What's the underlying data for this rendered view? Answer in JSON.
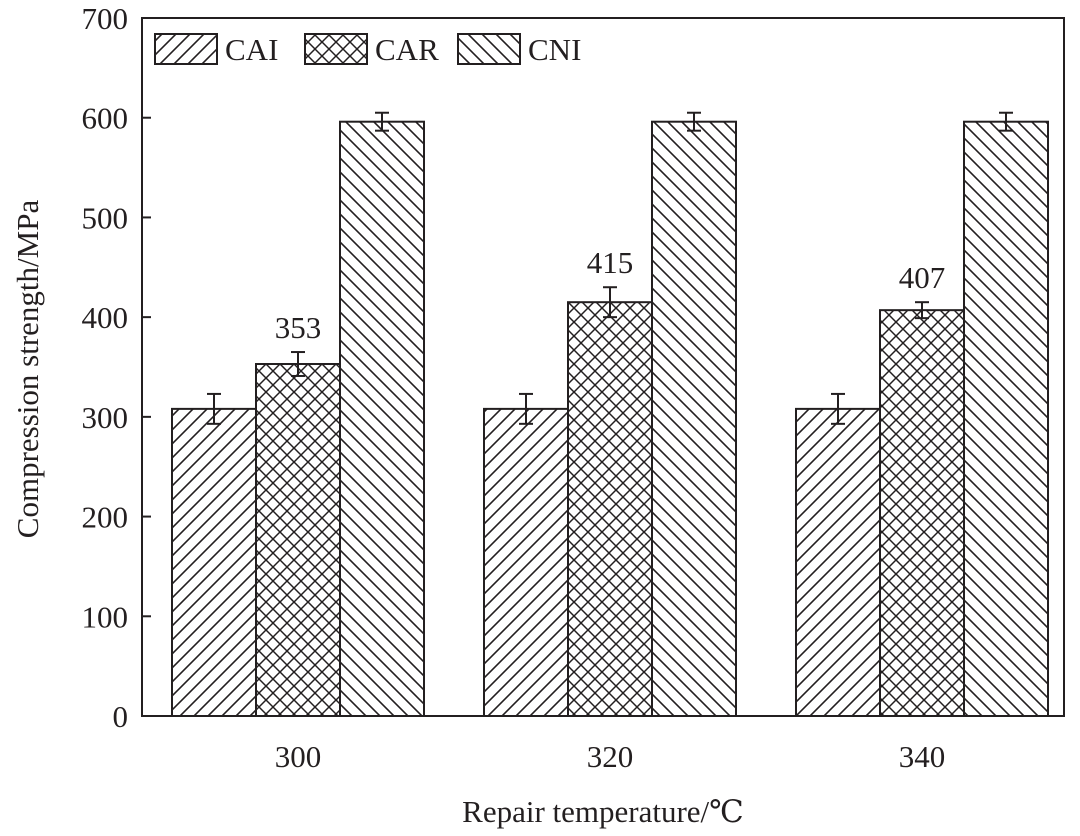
{
  "chart_data": {
    "type": "bar",
    "title": "",
    "xlabel": "Repair temperature/℃",
    "ylabel": "Compression strength/MPa",
    "categories": [
      "300",
      "320",
      "340"
    ],
    "ylim": [
      0,
      700
    ],
    "yticks": [
      "0",
      "100",
      "200",
      "300",
      "400",
      "500",
      "600",
      "700"
    ],
    "grid": false,
    "legend_position": "top-left",
    "series": [
      {
        "name": "CAI",
        "pattern": "diagonal-hatch",
        "values": [
          308,
          308,
          308
        ],
        "errors": [
          15,
          15,
          15
        ]
      },
      {
        "name": "CAR",
        "pattern": "cross-hatch",
        "values": [
          353,
          415,
          407
        ],
        "errors": [
          12,
          15,
          8
        ]
      },
      {
        "name": "CNI",
        "pattern": "back-diagonal-hatch",
        "values": [
          596,
          596,
          596
        ],
        "errors": [
          9,
          9,
          9
        ]
      }
    ],
    "annotations": [
      {
        "series": "CAR",
        "category": "300",
        "text": "353"
      },
      {
        "series": "CAR",
        "category": "320",
        "text": "415"
      },
      {
        "series": "CAR",
        "category": "340",
        "text": "407"
      }
    ],
    "colors": {
      "ink": "#231f20",
      "background": "#ffffff"
    }
  }
}
